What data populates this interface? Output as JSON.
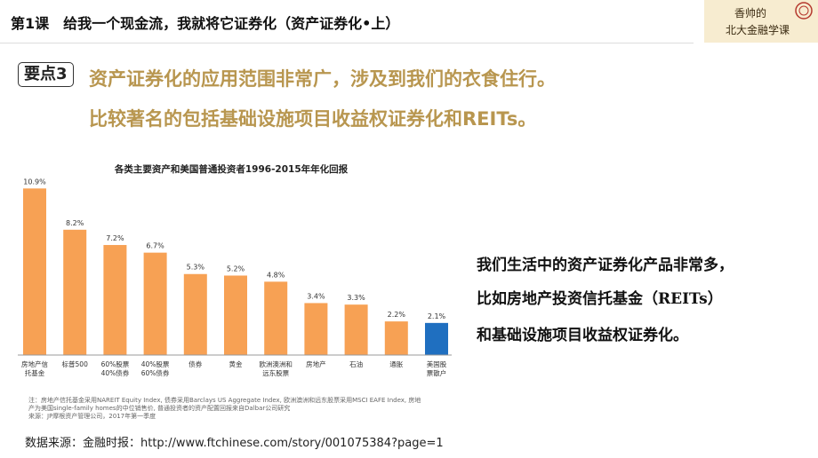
{
  "header": {
    "lesson_title": "第1课　给我一个现金流，我就将它证券化（资产证券化•上）",
    "logo_text_line1": "香帅的",
    "logo_text_line2": "北大金融学课"
  },
  "main": {
    "point_tag": "要点3",
    "headline_line1": "资产证券化的应用范围非常广，涉及到我们的衣食住行。",
    "headline_line2": "比较著名的包括基础设施项目收益权证券化和REITs。"
  },
  "chart_data": {
    "type": "bar",
    "title": "各类主要资产和美国普通投资者1996-2015年年化回报",
    "categories": [
      [
        "房地产信",
        "托基金"
      ],
      [
        "标普500"
      ],
      [
        "60%股票",
        "40%债券"
      ],
      [
        "40%股票",
        "60%债券"
      ],
      [
        "债券"
      ],
      [
        "黄金"
      ],
      [
        "欧洲澳洲和",
        "远东股票"
      ],
      [
        "房地产"
      ],
      [
        "石油"
      ],
      [
        "通胀"
      ],
      [
        "美国股",
        "票散户"
      ]
    ],
    "values": [
      10.9,
      8.2,
      7.2,
      6.7,
      5.3,
      5.2,
      4.8,
      3.4,
      3.3,
      2.2,
      2.1
    ],
    "value_labels": [
      "10.9%",
      "8.2%",
      "7.2%",
      "6.7%",
      "5.3%",
      "5.2%",
      "4.8%",
      "3.4%",
      "3.3%",
      "2.2%",
      "2.1%"
    ],
    "highlight_index": 10,
    "ylim": [
      0,
      11.5
    ],
    "xlabel": "",
    "ylabel": "",
    "grid": false,
    "colors": {
      "bar": "#f7a154",
      "highlight": "#1f6fc0",
      "axis": "#999999"
    }
  },
  "notes": {
    "line1": "注：房地产信托基金采用NAREIT Equity Index, 债券采用Barclays US Aggregate Index, 欧洲澳洲和远东股票采用MSCI EAFE Index, 房地",
    "line2": "产为美国single-family homes的中位销售价, 普通投资者的资产配置回报来自Dalbar公司研究",
    "line3": "来源：JP摩根资产管理公司，2017年第一季度"
  },
  "source": "数据来源：金融时报：http://www.ftchinese.com/story/001075384?page=1",
  "description": {
    "line1": "我们生活中的资产证券化产品非常多，",
    "line2": "比如房地产投资信托基金（REITs）",
    "line3": "和基础设施项目收益权证券化。"
  }
}
